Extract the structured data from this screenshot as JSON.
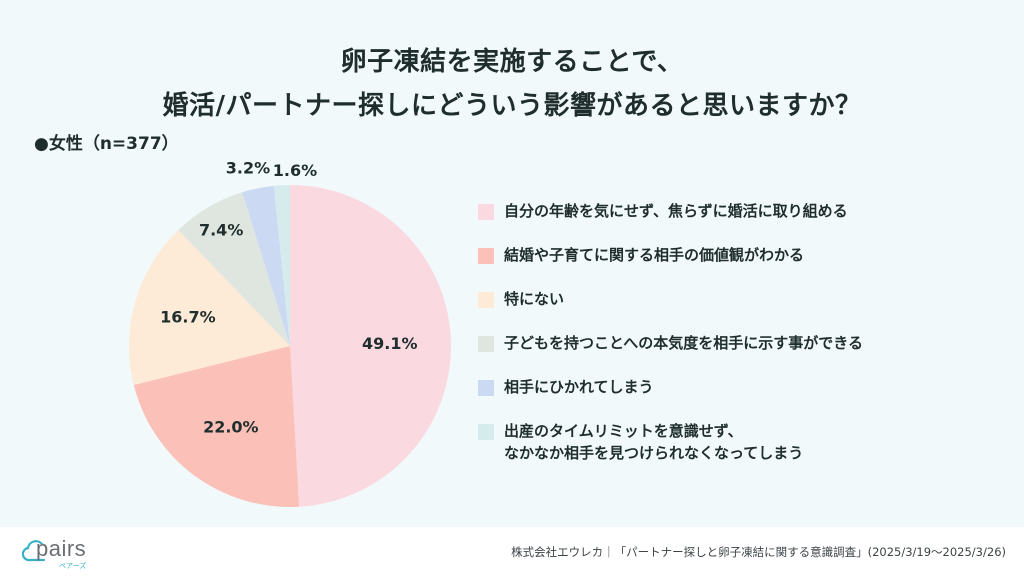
{
  "header": {
    "title_line1": "卵子凍結を実施することで、",
    "title_line2": "婚活/パートナー探しにどういう影響があると思いますか？",
    "sample_label": "●女性（n=377）"
  },
  "chart_data": {
    "type": "pie",
    "title": "卵子凍結を実施することで、婚活/パートナー探しにどういう影響があると思いますか？",
    "subtitle": "女性（n=377）",
    "start_angle": "12 o'clock",
    "direction": "clockwise",
    "legend_position": "right",
    "unit": "%",
    "slices": [
      {
        "label": "自分の年齢を気にせず、焦らずに婚活に取り組める",
        "value": 49.1,
        "display": "49.1%",
        "color": "#fbd9e1"
      },
      {
        "label": "結婚や子育てに関する相手の価値観がわかる",
        "value": 22.0,
        "display": "22.0%",
        "color": "#fbc0b8"
      },
      {
        "label": "特にない",
        "value": 16.7,
        "display": "16.7%",
        "color": "#fdead7"
      },
      {
        "label": "子どもを持つことへの本気度を相手に示す事ができる",
        "value": 7.4,
        "display": "7.4%",
        "color": "#dfe6df"
      },
      {
        "label": "相手にひかれてしまう",
        "value": 3.2,
        "display": "3.2%",
        "color": "#cbd9f2"
      },
      {
        "label": "出産のタイムリミットを意識せず、\nなかなか相手を見つけられなくなってしまう",
        "value": 1.6,
        "display": "1.6%",
        "color": "#d5ebec"
      }
    ]
  },
  "footer": {
    "logo_text": "pairs",
    "logo_sub": "ペアーズ",
    "source": "株式会社エウレカ｜「パートナー探しと卵子凍結に関する意識調査」(2025/3/19〜2025/3/26)"
  },
  "colors": {
    "background_panel": "#f2f9fa",
    "text": "#1f2d2d",
    "logo_accent": "#3ab0c6"
  }
}
